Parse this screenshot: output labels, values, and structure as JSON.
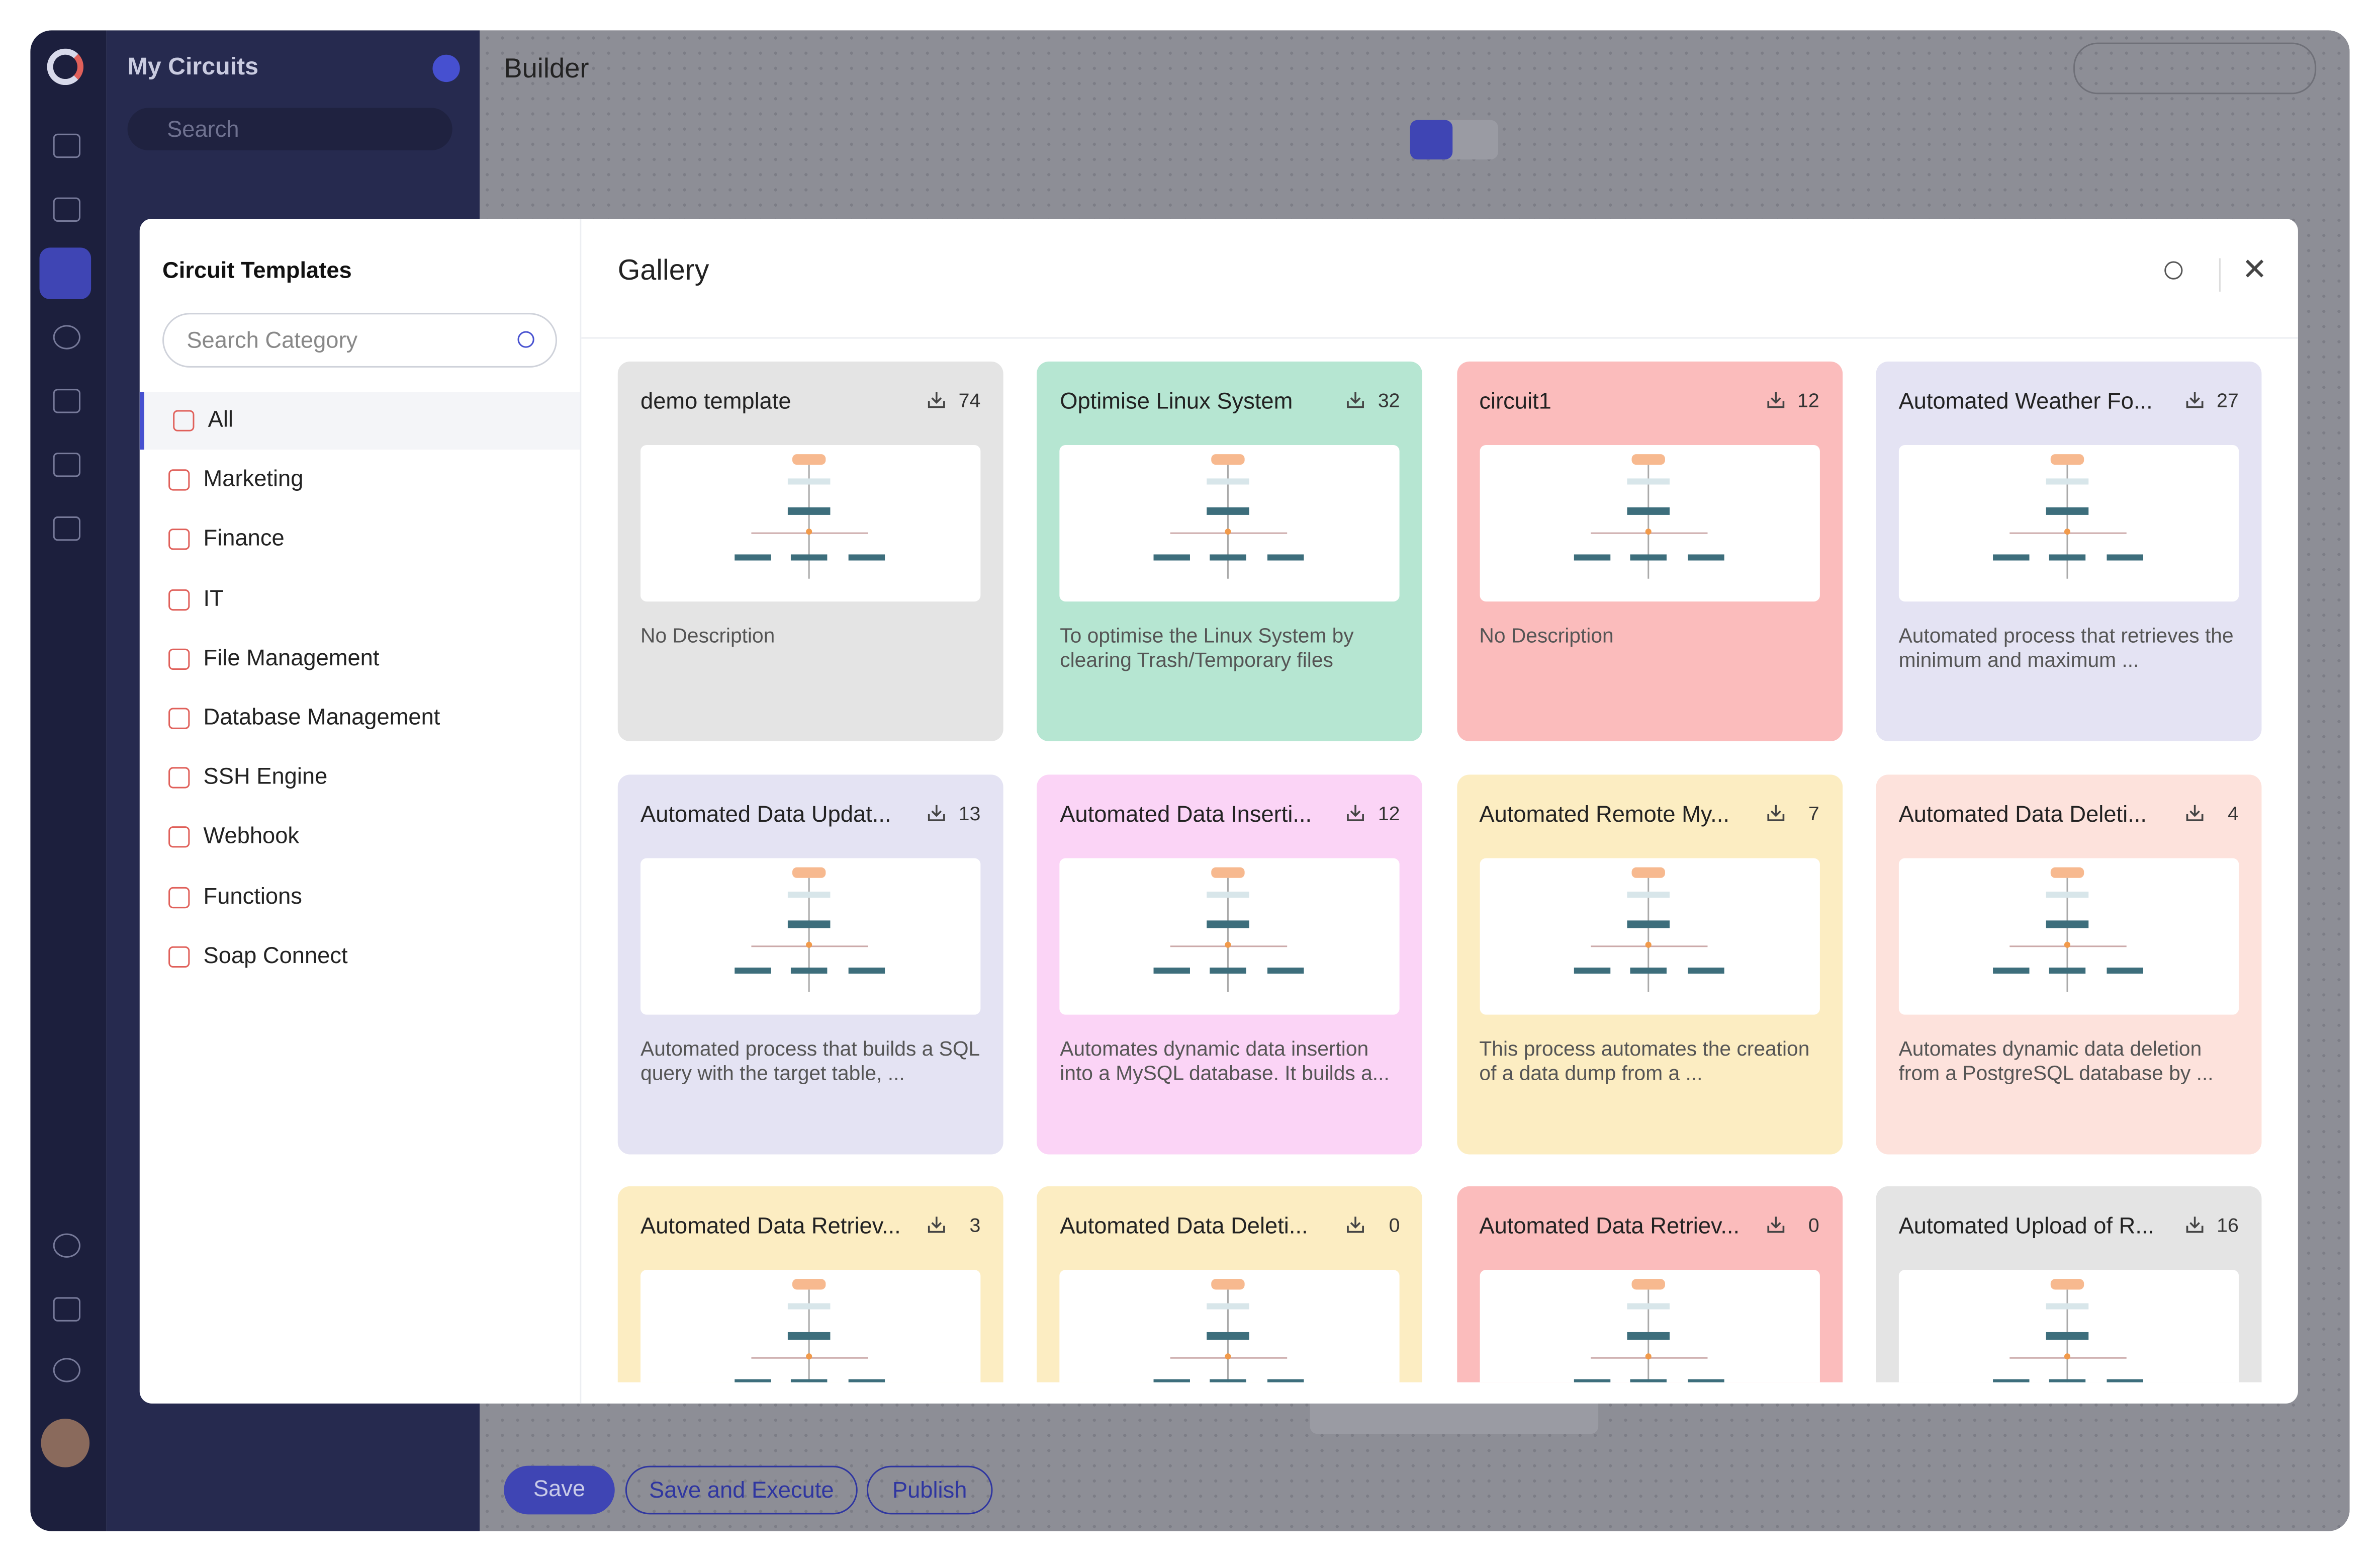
{
  "sidebar": {
    "title": "My Circuits",
    "search_placeholder": "Search"
  },
  "header": {
    "title": "Builder"
  },
  "modal": {
    "panel_title": "Circuit Templates",
    "category_search_placeholder": "Search Category",
    "categories": [
      "All",
      "Marketing",
      "Finance",
      "IT",
      "File Management",
      "Database Management",
      "SSH Engine",
      "Webhook",
      "Functions",
      "Soap Connect"
    ],
    "gallery_title": "Gallery",
    "cards": [
      {
        "title": "demo template",
        "downloads": 74,
        "description": "No Description",
        "color": "#e4e4e4"
      },
      {
        "title": "Optimise Linux System",
        "downloads": 32,
        "description": "To optimise the Linux System by clearing Trash/Temporary files",
        "color": "#b6e6d2"
      },
      {
        "title": "circuit1",
        "downloads": 12,
        "description": "No Description",
        "color": "#fbbcbc"
      },
      {
        "title": "Automated Weather Fo...",
        "downloads": 27,
        "description": "Automated process that retrieves the minimum and maximum ...",
        "color": "#e4e3f3"
      },
      {
        "title": "Automated Data Updat...",
        "downloads": 13,
        "description": "Automated process that builds a SQL query with the target table, ...",
        "color": "#e4e3f3"
      },
      {
        "title": "Automated Data Inserti...",
        "downloads": 12,
        "description": "Automates dynamic data insertion into a MySQL database. It builds a...",
        "color": "#fbd4f6"
      },
      {
        "title": "Automated Remote My...",
        "downloads": 7,
        "description": "This process automates the creation of a data dump from a ...",
        "color": "#fcedc2"
      },
      {
        "title": "Automated Data Deleti...",
        "downloads": 4,
        "description": "Automates dynamic data deletion from a PostgreSQL database by ...",
        "color": "#fde2dc"
      },
      {
        "title": "Automated Data Retriev...",
        "downloads": 3,
        "color": "#fcedc2"
      },
      {
        "title": "Automated Data Deleti...",
        "downloads": 0,
        "color": "#fcedc2"
      },
      {
        "title": "Automated Data Retriev...",
        "downloads": 0,
        "color": "#fbbcbc"
      },
      {
        "title": "Automated Upload of R...",
        "downloads": 16,
        "color": "#e4e4e4"
      }
    ]
  },
  "footer": {
    "buttons": [
      "Save",
      "Save and Execute",
      "Publish"
    ]
  }
}
